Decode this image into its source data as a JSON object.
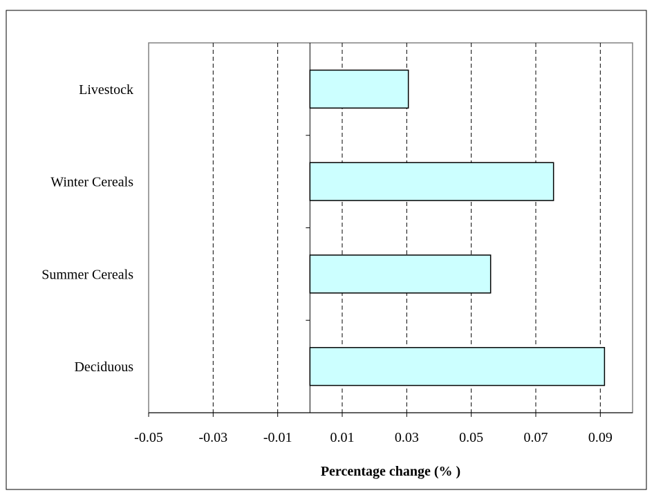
{
  "chart_data": {
    "type": "bar",
    "orientation": "horizontal",
    "categories": [
      "Livestock",
      "Winter Cereals",
      "Summer Cereals",
      "Deciduous"
    ],
    "values": [
      0.0305,
      0.0755,
      0.056,
      0.0913
    ],
    "title": "",
    "xlabel": "Percentage change (% )",
    "ylabel": "",
    "xlim": [
      -0.05,
      0.1
    ],
    "xticks": [
      -0.05,
      -0.03,
      -0.01,
      0.01,
      0.03,
      0.05,
      0.07,
      0.09
    ],
    "xtick_labels": [
      "-0.05",
      "-0.03",
      "-0.01",
      "0.01",
      "0.03",
      "0.05",
      "0.07",
      "0.09"
    ],
    "grid": "vertical dashed",
    "legend": "none",
    "bar_color": "#ccffff",
    "bar_edge_color": "#000000"
  }
}
